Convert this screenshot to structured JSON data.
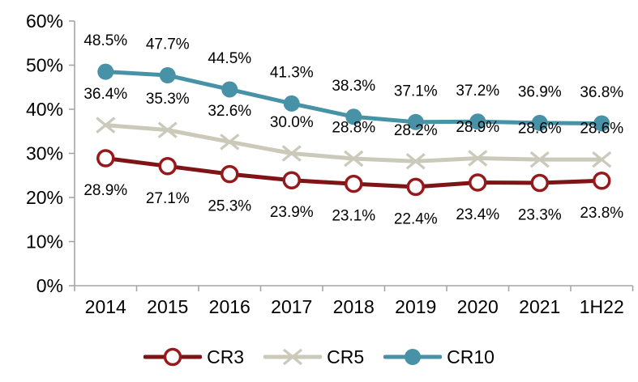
{
  "chart_data": {
    "type": "line",
    "categories": [
      "2014",
      "2015",
      "2016",
      "2017",
      "2018",
      "2019",
      "2020",
      "2021",
      "1H22"
    ],
    "series": [
      {
        "name": "CR3",
        "values": [
          28.9,
          27.1,
          25.3,
          23.9,
          23.1,
          22.4,
          23.4,
          23.3,
          23.8
        ],
        "labels": [
          "28.9%",
          "27.1%",
          "25.3%",
          "23.9%",
          "23.1%",
          "22.4%",
          "23.4%",
          "23.3%",
          "23.8%"
        ],
        "color": "#7E1416",
        "marker_stroke": "#96191C",
        "marker": "open-circle",
        "label_position": "below"
      },
      {
        "name": "CR5",
        "values": [
          36.4,
          35.3,
          32.6,
          30.0,
          28.8,
          28.2,
          28.9,
          28.6,
          28.6
        ],
        "labels": [
          "36.4%",
          "35.3%",
          "32.6%",
          "30.0%",
          "28.8%",
          "28.2%",
          "28.9%",
          "28.6%",
          "28.6%"
        ],
        "color": "#CBC9BA",
        "marker_stroke": "#CBC9BA",
        "marker": "x",
        "label_position": "above"
      },
      {
        "name": "CR10",
        "values": [
          48.5,
          47.7,
          44.5,
          41.3,
          38.3,
          37.1,
          37.2,
          36.9,
          36.8
        ],
        "labels": [
          "48.5%",
          "47.7%",
          "44.5%",
          "41.3%",
          "38.3%",
          "37.1%",
          "37.2%",
          "36.9%",
          "36.8%"
        ],
        "color": "#4792A7",
        "marker_stroke": "#4792A7",
        "marker": "filled-circle",
        "label_position": "above"
      }
    ],
    "title": "",
    "xlabel": "",
    "ylabel": "",
    "y_ticks": [
      "0%",
      "10%",
      "20%",
      "30%",
      "40%",
      "50%",
      "60%"
    ],
    "ylim": [
      0,
      60
    ],
    "y_step": 10,
    "grid": false,
    "legend_position": "bottom",
    "axis_color": "#A6A6A6",
    "text_color": "#000000",
    "label_format": "percent-one-decimal"
  }
}
